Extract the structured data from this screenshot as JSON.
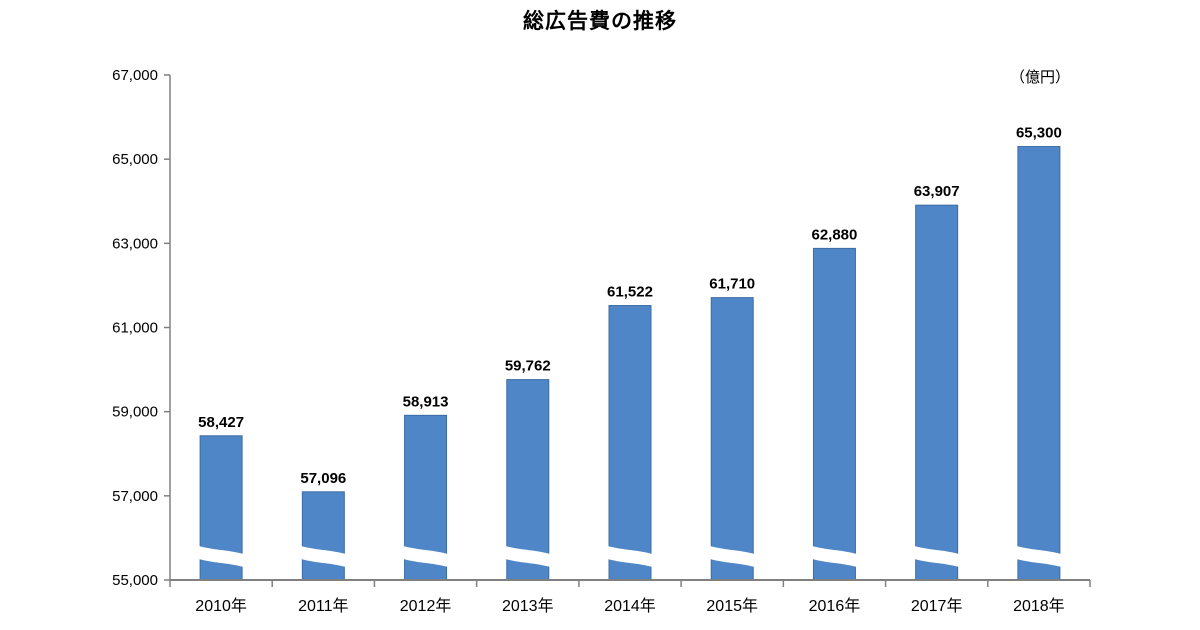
{
  "title": "総広告費の推移",
  "unit_label": "（億円）",
  "chart_data": {
    "type": "bar",
    "title": "総広告費の推移",
    "unit": "（億円）",
    "categories": [
      "2010年",
      "2011年",
      "2012年",
      "2013年",
      "2014年",
      "2015年",
      "2016年",
      "2017年",
      "2018年"
    ],
    "values": [
      58427,
      57096,
      58913,
      59762,
      61522,
      61710,
      62880,
      63907,
      65300
    ],
    "value_labels": [
      "58,427",
      "57,096",
      "58,913",
      "59,762",
      "61,522",
      "61,710",
      "62,880",
      "63,907",
      "65,300"
    ],
    "ylim": [
      55000,
      67000
    ],
    "ytick_step": 2000,
    "ytick_labels": [
      "55,000",
      "57,000",
      "59,000",
      "61,000",
      "63,000",
      "65,000",
      "67,000"
    ],
    "axis_break": true,
    "grid": false,
    "legend": "none",
    "bar_color": "#4E86C8",
    "bar_border_color": "#3D6CA5",
    "axis_color": "#808080",
    "text_color": "#000000"
  }
}
